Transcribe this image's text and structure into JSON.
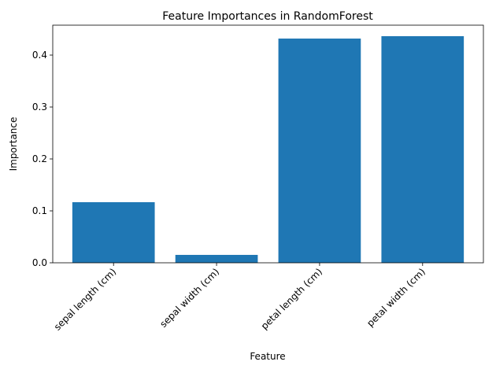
{
  "chart_data": {
    "type": "bar",
    "title": "Feature Importances in RandomForest",
    "x_label": "Feature",
    "y_label": "Importance",
    "categories": [
      "sepal length (cm)",
      "sepal width (cm)",
      "petal length (cm)",
      "petal width (cm)"
    ],
    "values": [
      0.1167,
      0.0152,
      0.4318,
      0.4364
    ],
    "color": "#1f77b4",
    "ylim": [
      0,
      0.4576
    ],
    "yticks": [
      {
        "value": 0,
        "label": "0.0"
      },
      0.1,
      0.2,
      0.3,
      0.4
    ],
    "grid": false
  }
}
